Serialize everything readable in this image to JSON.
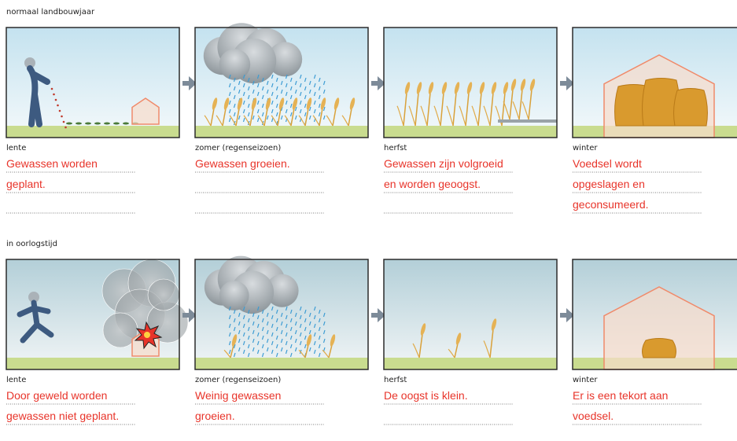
{
  "rows": [
    {
      "label": "normaal landbouwjaar",
      "panels": [
        {
          "season": "lente",
          "lines": [
            "Gewassen worden",
            " geplant."
          ]
        },
        {
          "season": "zomer (regenseizoen)",
          "lines": [
            "Gewassen groeien."
          ]
        },
        {
          "season": "herfst",
          "lines": [
            "Gewassen zijn volgroeid",
            "en worden geoogst."
          ]
        },
        {
          "season": "winter",
          "lines": [
            "Voedsel wordt",
            "opgeslagen en",
            "geconsumeerd."
          ]
        }
      ]
    },
    {
      "label": "in oorlogstijd",
      "panels": [
        {
          "season": "lente",
          "lines": [
            "Door geweld worden",
            "gewassen niet geplant."
          ]
        },
        {
          "season": "zomer (regenseizoen)",
          "lines": [
            "Weinig gewassen",
            "groeien."
          ]
        },
        {
          "season": "herfst",
          "lines": [
            "De oogst is klein."
          ]
        },
        {
          "season": "winter",
          "lines": [
            "Er is een tekort aan",
            "voedsel."
          ]
        }
      ]
    }
  ]
}
